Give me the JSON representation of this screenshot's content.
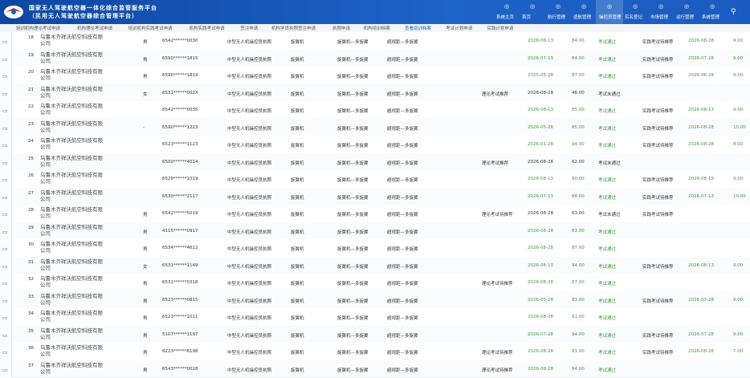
{
  "header": {
    "title": "国家无人驾驶航空器一体化综合监管服务平台",
    "subtitle": "（民用无人驾驶航空器综合管理平台）"
  },
  "nav": [
    "系统主页",
    "首页",
    "航行管理",
    "适航管理",
    "操控员管理",
    "实名登记",
    "市场管理",
    "运行管理",
    "系统管理"
  ],
  "tabs": [
    "培训机构理论考试申请",
    "机构理论考试申请",
    "培训机构实践考试申请",
    "机构实践考试申请",
    "签注申请",
    "机构学员执照签注申请",
    "执照申请",
    "机构培训档案",
    "查看培训档案",
    "考试计划申请",
    "实践计划申请"
  ],
  "table": {
    "rows": [
      [
        18,
        "乌鲁木齐祥沃航空科技有限公司",
        "男",
        "6542******0030",
        "中型无人机操控员执照",
        "旋翼机",
        "旋翼机—多旋翼",
        "超视距—多旋翼",
        null,
        "2026-08-13",
        "84.00",
        "考试通过",
        "实践考试待推荐",
        "2026-08-28",
        "9.00"
      ],
      [
        19,
        "乌鲁木齐祥沃航空科技有限公司",
        "男",
        "6590******1815",
        "中型无人机操控员执照",
        "旋翼机",
        "旋翼机—多旋翼",
        "超视距—多旋翼",
        null,
        "2026-07-13",
        "84.00",
        "考试通过",
        "实践考试待推荐",
        "2026-07-28",
        "9.00"
      ],
      [
        20,
        "乌鲁木齐祥沃航空科技有限公司",
        "男",
        "6590******1819",
        "中型无人机操控员执照",
        "旋翼机",
        "旋翼机—多旋翼",
        "超视距—多旋翼",
        null,
        "2025-05-28",
        "87.00",
        "考试通过",
        "实践考试待推荐",
        "2026-06-28",
        "9.00"
      ],
      [
        21,
        "乌鲁木齐祥沃航空科技有限公司",
        "女",
        "6531******002X",
        "中型无人机操控员执照",
        "旋翼机",
        "旋翼机—多旋翼",
        "超视距—多旋翼",
        "理论考试推荐",
        "2026-08-28",
        "46.00",
        "考试未通过",
        null,
        null,
        null
      ],
      [
        22,
        "乌鲁木齐祥沃航空科技有限公司",
        null,
        "6542******0035",
        "中型无人机操控员执照",
        "旋翼机",
        "旋翼机—多旋翼",
        "超视距—多旋翼",
        null,
        "2026-08-13",
        "85.00",
        "考试通过",
        "实践考试待推荐",
        "2026-08-13",
        "9.00"
      ],
      [
        23,
        "乌鲁木齐祥沃航空科技有限公司",
        "-",
        "6590******1223",
        "中型无人机操控员执照",
        "旋翼机",
        "旋翼机—多旋翼",
        "超视距—多旋翼",
        null,
        "2026-05-28",
        "85.00",
        "考试通过",
        "实践考试待推荐",
        "2026-08-28",
        "10.00"
      ],
      [
        24,
        "乌鲁木齐祥沃航空科技有限公司",
        null,
        "6523******1123",
        "中型无人机操控员执照",
        "旋翼机",
        "旋翼机—多旋翼",
        "超视距—多旋翼",
        null,
        "2026-01-28",
        "94.00",
        "考试通过",
        "实践考试待推荐",
        "2026-08-28",
        "8.00"
      ],
      [
        25,
        "乌鲁木齐祥沃航空科技有限公司",
        null,
        "6500******4014",
        "中型无人机操控员执照",
        "旋翼机",
        "旋翼机—多旋翼",
        "超视距—多旋翼",
        "理论考试推荐",
        "2026-08-28",
        "62.00",
        "考试未通过",
        null,
        null,
        null
      ],
      [
        26,
        "乌鲁木齐祥沃航空科技有限公司",
        null,
        "6529******1019",
        "中型无人机操控员执照",
        "旋翼机",
        "旋翼机—多旋翼",
        "超视距—多旋翼",
        null,
        "2026-08-13",
        "90.00",
        "考试通过",
        "实践考试待推荐",
        "2026-08-13",
        "9.00"
      ],
      [
        27,
        "乌鲁木齐祥沃航空科技有限公司",
        null,
        "6530******2117",
        "中型无人机操控员执照",
        "旋翼机",
        "旋翼机—多旋翼",
        "超视距—多旋翼",
        null,
        "2026-07-13",
        "88.00",
        "考试通过",
        "实践考试待推荐",
        "2026-07-13",
        "10.00"
      ],
      [
        28,
        "乌鲁木齐祥沃航空科技有限公司",
        "男",
        "6542******5019",
        "中型无人机操控员执照",
        "旋翼机",
        "旋翼机—多旋翼",
        "超视距—多旋翼",
        "理论考试待推荐",
        "2026-08-28",
        "63.00",
        "考试未通过",
        "实践考试待推荐",
        null,
        null
      ],
      [
        29,
        "乌鲁木齐祥沃航空科技有限公司",
        "男",
        "4115******0917",
        "中型无人机操控员执照",
        "旋翼机",
        "旋翼机—多旋翼",
        "超视距—多旋翼",
        null,
        "2026-08-28",
        "83.00",
        "考试通过",
        null,
        null,
        null
      ],
      [
        30,
        "乌鲁木齐祥沃航空科技有限公司",
        "男",
        "6534******4612",
        "中型无人机操控员执照",
        "旋翼机",
        "旋翼机—多旋翼",
        "超视距—多旋翼",
        null,
        "2026-08-28",
        "87.00",
        "考试通过",
        null,
        null,
        null
      ],
      [
        31,
        "乌鲁木齐祥沃航空科技有限公司",
        "女",
        "6531******1149",
        "中型无人机操控员执照",
        "旋翼机",
        "旋翼机—多旋翼",
        "超视距—多旋翼",
        null,
        "2026-08-13",
        "94.00",
        "考试通过",
        "实践考试待推荐",
        "2026-08-13",
        "9.00"
      ],
      [
        32,
        "乌鲁木齐祥沃航空科技有限公司",
        "男",
        "6531******0318",
        "中型无人机操控员执照",
        "旋翼机",
        "旋翼机—多旋翼",
        "超视距—多旋翼",
        "理论考试待推荐",
        "2026-08-28",
        "87.00",
        "考试通过",
        null,
        null,
        null
      ],
      [
        33,
        "乌鲁木齐祥沃航空科技有限公司",
        "男",
        "6523******0815",
        "中型无人机操控员执照",
        "旋翼机",
        "旋翼机—多旋翼",
        "超视距—多旋翼",
        null,
        "2026-05-28",
        "83.00",
        "考试通过",
        "实践考试待推荐",
        "2026-07-28",
        "9.00"
      ],
      [
        34,
        "乌鲁木齐祥沃航空科技有限公司",
        "男",
        "6523******1011",
        "中型无人机操控员执照",
        "旋翼机",
        "旋翼机—多旋翼",
        "超视距—多旋翼",
        null,
        "2026-08-28",
        "81.00",
        "考试通过",
        null,
        null,
        null
      ],
      [
        35,
        "乌鲁木齐祥沃航空科技有限公司",
        "男",
        "5107******1197",
        "中型无人机操控员执照",
        "旋翼机",
        "旋翼机—多旋翼",
        "超视距—多旋翼",
        null,
        "2026-07-28",
        "94.00",
        "考试通过",
        "实践考试待推荐",
        "2026-07-28",
        "9.00"
      ],
      [
        36,
        "乌鲁木齐祥沃航空科技有限公司",
        "男",
        "6223******8198",
        "中型无人机操控员执照",
        "旋翼机",
        "旋翼机—多旋翼",
        "超视距—多旋翼",
        "理论考试待推荐",
        "2026-08-28",
        "91.00",
        "考试通过",
        "实践考试待推荐",
        "2026-08-28",
        "7.00"
      ],
      [
        37,
        "乌鲁木齐祥沃航空科技有限公司",
        "男",
        "6543******0018",
        "中型无人机操控员执照",
        "旋翼机",
        "旋翼机—多旋翼",
        "超视距—多旋翼",
        "理论考试待推荐",
        "2026-08-28",
        "94.00",
        "考试通过",
        null,
        null,
        null
      ]
    ]
  }
}
